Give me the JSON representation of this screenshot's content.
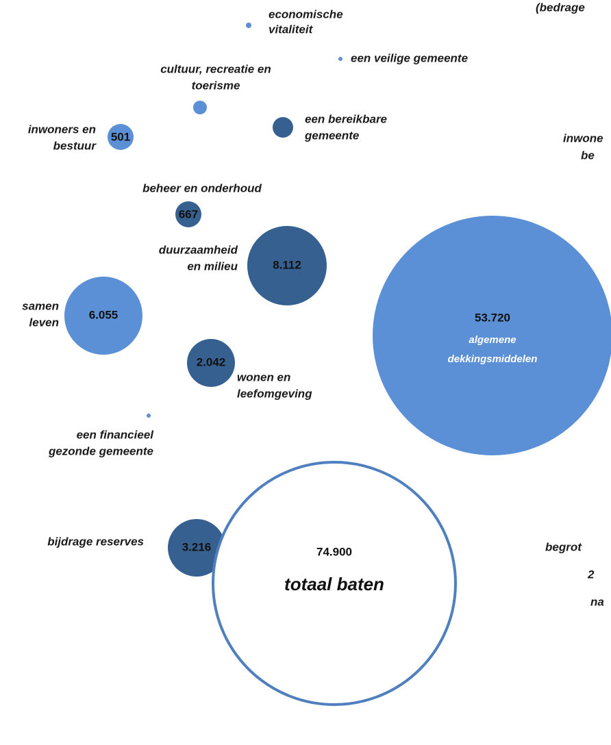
{
  "header": {
    "note": "(bedrage"
  },
  "nodes": [
    {
      "label": [
        "economische",
        "vitaliteit"
      ]
    },
    {
      "label": [
        "een veilige gemeente"
      ]
    },
    {
      "label": [
        "cultuur, recreatie en",
        "toerisme"
      ]
    },
    {
      "label": [
        "een bereikbare",
        "gemeente"
      ]
    },
    {
      "label": [
        "inwoners en",
        "bestuur"
      ],
      "value": "501"
    },
    {
      "label": [
        "beheer en onderhoud"
      ],
      "value": "667"
    },
    {
      "label": [
        "duurzaamheid",
        "en milieu"
      ],
      "value": "8.112"
    },
    {
      "label": [
        "samen",
        "leven"
      ],
      "value": "6.055"
    },
    {
      "label": [
        "wonen en",
        "leefomgeving"
      ],
      "value": "2.042"
    },
    {
      "label": [
        "een financieel",
        "gezonde gemeente"
      ]
    },
    {
      "label": [
        "algemene",
        "dekkingsmiddelen"
      ],
      "value": "53.720"
    },
    {
      "label": [
        "bijdrage reserves"
      ],
      "value": "3.216"
    },
    {
      "label": [
        "totaal baten"
      ],
      "value": "74.900"
    }
  ],
  "side_labels": [
    [
      "inwone",
      "be"
    ],
    [
      "begrot",
      "2",
      "na"
    ]
  ]
}
